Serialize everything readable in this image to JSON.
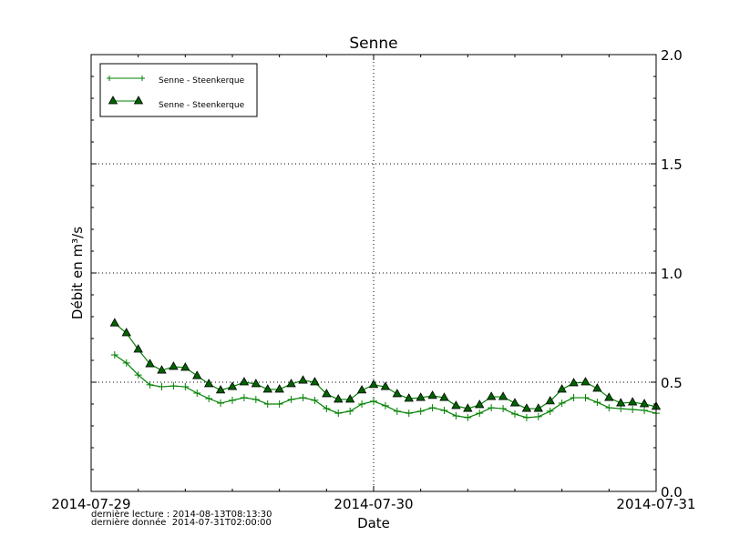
{
  "chart_data": {
    "type": "line",
    "title": "Senne",
    "xlabel": "Date",
    "ylabel": "Débit en m³/s",
    "xlim": [
      "2014-07-29T00:00",
      "2014-07-31T00:00"
    ],
    "ylim": [
      0,
      2
    ],
    "x_ticks": [
      "2014-07-29",
      "2014-07-30",
      "2014-07-31"
    ],
    "y_ticks": [
      "0.0",
      "0.5",
      "1.0",
      "1.5",
      "2.0"
    ],
    "y_axis_side": "right",
    "grid": true,
    "legend_position": "top-left",
    "colors": {
      "line": "#008000",
      "marker_fill": "#006400",
      "marker_edge": "#000000"
    },
    "x": [
      "2014-07-29T02:00",
      "2014-07-29T03:00",
      "2014-07-29T04:00",
      "2014-07-29T05:00",
      "2014-07-29T06:00",
      "2014-07-29T07:00",
      "2014-07-29T08:00",
      "2014-07-29T09:00",
      "2014-07-29T10:00",
      "2014-07-29T11:00",
      "2014-07-29T12:00",
      "2014-07-29T13:00",
      "2014-07-29T14:00",
      "2014-07-29T15:00",
      "2014-07-29T16:00",
      "2014-07-29T17:00",
      "2014-07-29T18:00",
      "2014-07-29T19:00",
      "2014-07-29T20:00",
      "2014-07-29T21:00",
      "2014-07-29T22:00",
      "2014-07-29T23:00",
      "2014-07-30T00:00",
      "2014-07-30T01:00",
      "2014-07-30T02:00",
      "2014-07-30T03:00",
      "2014-07-30T04:00",
      "2014-07-30T05:00",
      "2014-07-30T06:00",
      "2014-07-30T07:00",
      "2014-07-30T08:00",
      "2014-07-30T09:00",
      "2014-07-30T10:00",
      "2014-07-30T11:00",
      "2014-07-30T12:00",
      "2014-07-30T13:00",
      "2014-07-30T14:00",
      "2014-07-30T15:00",
      "2014-07-30T16:00",
      "2014-07-30T17:00",
      "2014-07-30T18:00",
      "2014-07-30T19:00",
      "2014-07-30T20:00",
      "2014-07-30T21:00",
      "2014-07-30T22:00",
      "2014-07-30T23:00",
      "2014-07-31T00:00"
    ],
    "series": [
      {
        "name": "Senne - Steenkerque",
        "marker": "plus",
        "values": [
          0.625,
          0.588,
          0.533,
          0.488,
          0.479,
          0.483,
          0.479,
          0.45,
          0.425,
          0.404,
          0.417,
          0.429,
          0.421,
          0.4,
          0.4,
          0.421,
          0.429,
          0.417,
          0.379,
          0.358,
          0.367,
          0.4,
          0.413,
          0.392,
          0.367,
          0.358,
          0.367,
          0.383,
          0.371,
          0.346,
          0.338,
          0.358,
          0.383,
          0.379,
          0.354,
          0.338,
          0.342,
          0.367,
          0.404,
          0.429,
          0.429,
          0.408,
          0.383,
          0.379,
          0.375,
          0.371,
          0.358
        ]
      },
      {
        "name": "Senne - Steenkerque",
        "marker": "triangle",
        "values": [
          0.77,
          0.725,
          0.65,
          0.583,
          0.554,
          0.571,
          0.567,
          0.529,
          0.492,
          0.463,
          0.479,
          0.5,
          0.492,
          0.467,
          0.467,
          0.492,
          0.508,
          0.5,
          0.446,
          0.421,
          0.421,
          0.463,
          0.488,
          0.479,
          0.446,
          0.425,
          0.429,
          0.438,
          0.429,
          0.392,
          0.379,
          0.396,
          0.433,
          0.433,
          0.404,
          0.379,
          0.379,
          0.413,
          0.467,
          0.496,
          0.5,
          0.471,
          0.429,
          0.404,
          0.408,
          0.4,
          0.388
        ]
      }
    ]
  },
  "footnotes": {
    "last_read": "dernière lecture : 2014-08-13T08:13:30",
    "last_data": "dernière donnée  2014-07-31T02:00:00"
  }
}
